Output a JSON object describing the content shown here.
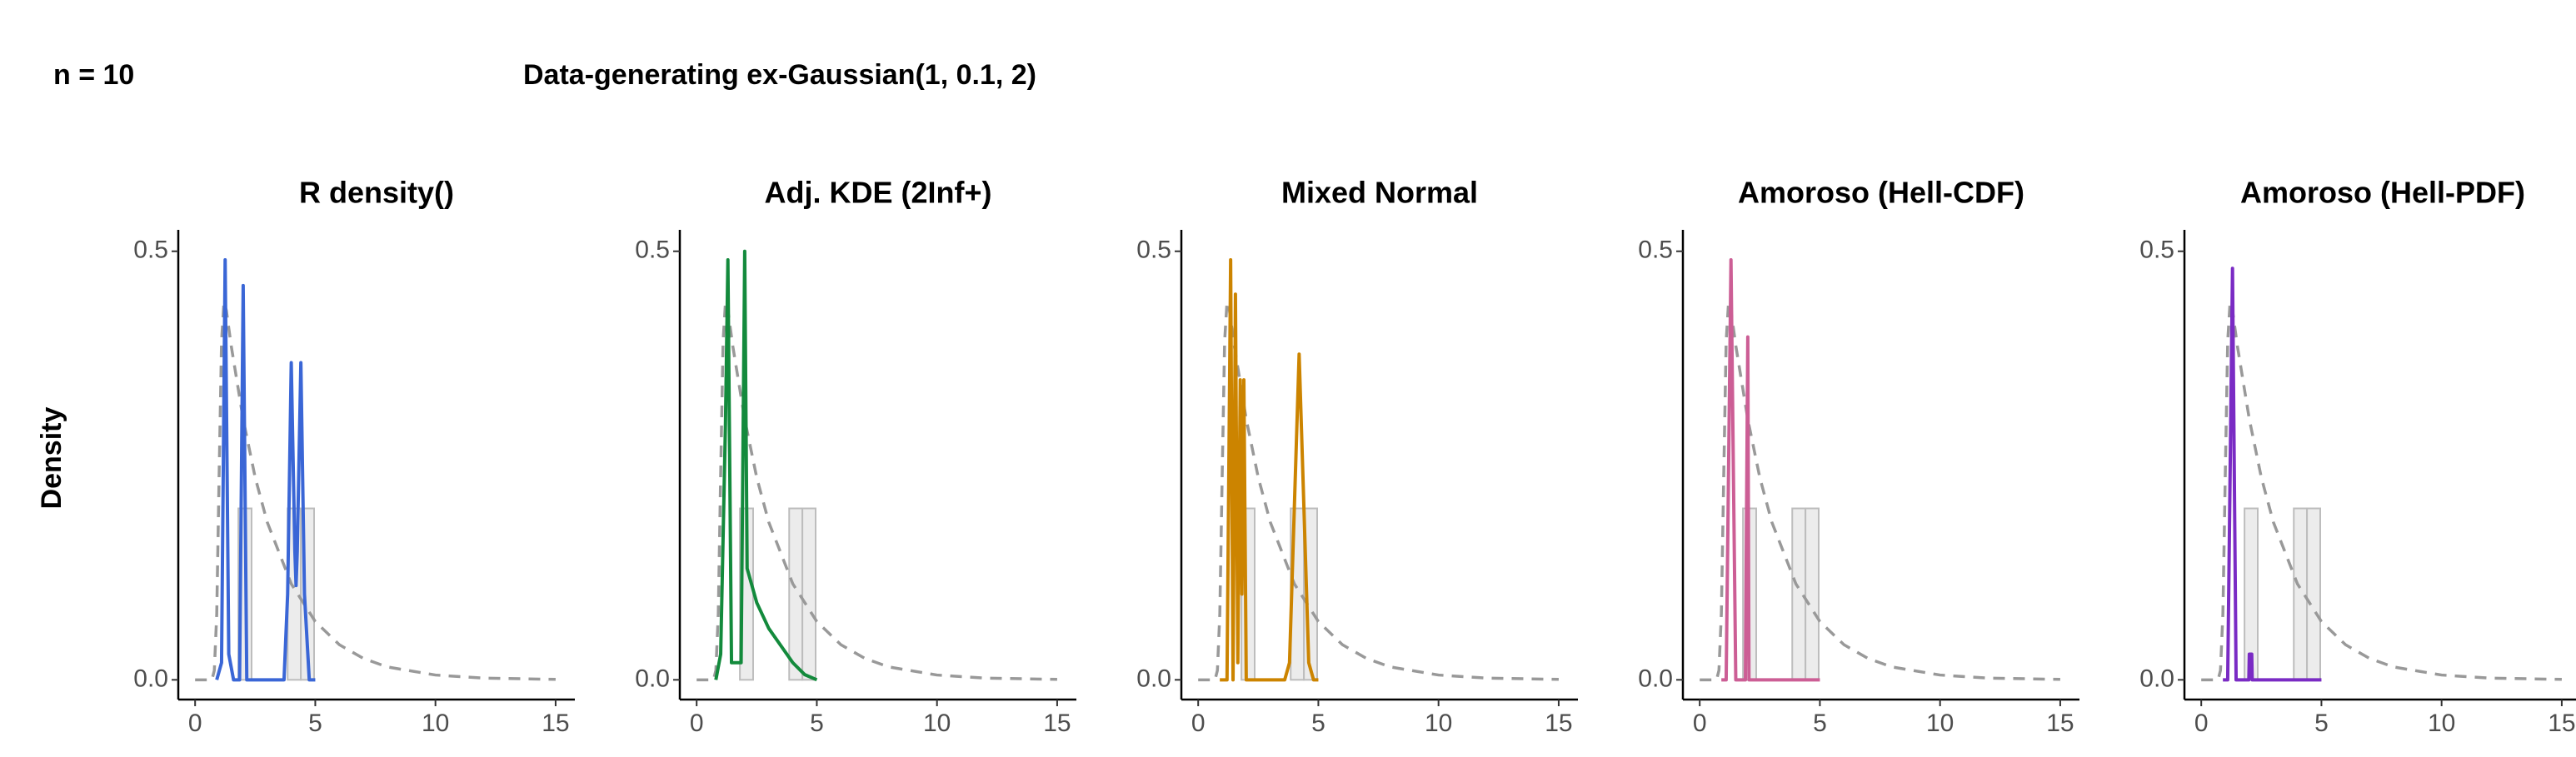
{
  "chart_data": {
    "type": "line",
    "sample_label": "n = 10",
    "title": "Data-generating ex-Gaussian(1, 0.1, 2)",
    "y_label": "Density",
    "xlim": [
      -0.7,
      15.8
    ],
    "ylim": [
      -0.023,
      0.525
    ],
    "xticks": [
      0,
      5,
      10,
      15
    ],
    "yticks": [
      {
        "value": 0,
        "label": "0.0"
      },
      {
        "value": 0.5,
        "label": "0.5"
      }
    ],
    "histogram": {
      "bins": [
        1.8,
        2.35,
        3.85,
        4.4,
        4.95
      ],
      "values": [
        0.2,
        0,
        0.2,
        0.2
      ],
      "color": "#bdbdbd"
    },
    "reference": {
      "color": "#999999",
      "x": [
        0,
        0.7,
        0.8,
        0.9,
        1.0,
        1.1,
        1.2,
        1.3,
        1.5,
        2,
        2.5,
        3,
        4,
        5,
        6,
        7,
        8,
        10,
        12,
        15
      ],
      "values": [
        0,
        0,
        0.011,
        0.077,
        0.24,
        0.395,
        0.441,
        0.431,
        0.39,
        0.304,
        0.236,
        0.184,
        0.112,
        0.068,
        0.041,
        0.025,
        0.015,
        0.0056,
        0.002,
        0.0005
      ]
    },
    "panels": [
      {
        "title": "R density()",
        "color": "#3a66d6",
        "x": [
          0.9,
          1.1,
          1.25,
          1.4,
          1.6,
          1.85,
          2.0,
          2.15,
          2.4,
          3.7,
          3.85,
          4.0,
          4.15,
          4.2,
          4.25,
          4.4,
          4.55,
          4.75,
          5.0
        ],
        "values": [
          0,
          0.02,
          0.49,
          0.03,
          0,
          0,
          0.46,
          0,
          0,
          0,
          0.1,
          0.37,
          0.15,
          0.11,
          0.15,
          0.37,
          0.1,
          0,
          0
        ]
      },
      {
        "title": "Adj. KDE (2Inf+)",
        "color": "#138a3c",
        "x": [
          0.8,
          1.0,
          1.2,
          1.3,
          1.45,
          1.85,
          2.0,
          2.1,
          2.5,
          3,
          3.5,
          4,
          4.5,
          5
        ],
        "values": [
          0,
          0.03,
          0.3,
          0.49,
          0.02,
          0.02,
          0.5,
          0.13,
          0.09,
          0.06,
          0.04,
          0.02,
          0.006,
          0
        ]
      },
      {
        "title": "Mixed Normal",
        "color": "#cc8400",
        "x": [
          0.9,
          1.2,
          1.35,
          1.45,
          1.55,
          1.65,
          1.75,
          1.82,
          1.9,
          2.0,
          3.6,
          3.8,
          4.0,
          4.2,
          4.4,
          4.6,
          4.8,
          5.0
        ],
        "values": [
          0,
          0,
          0.49,
          0,
          0.45,
          0.02,
          0.35,
          0.1,
          0.35,
          0,
          0,
          0.02,
          0.2,
          0.38,
          0.2,
          0.02,
          0,
          0
        ]
      },
      {
        "title": "Amoroso (Hell-CDF)",
        "color": "#cc5e95",
        "x": [
          0.9,
          1.1,
          1.3,
          1.5,
          1.9,
          2.0,
          2.05,
          5.0
        ],
        "values": [
          0,
          0,
          0.49,
          0,
          0,
          0.4,
          0,
          0
        ]
      },
      {
        "title": "Amoroso (Hell-PDF)",
        "color": "#7a2bc4",
        "x": [
          0.9,
          1.1,
          1.3,
          1.45,
          1.98,
          2.0,
          2.1,
          2.12,
          5.0
        ],
        "values": [
          0,
          0,
          0.48,
          0,
          0,
          0.03,
          0.03,
          0,
          0
        ]
      }
    ]
  }
}
